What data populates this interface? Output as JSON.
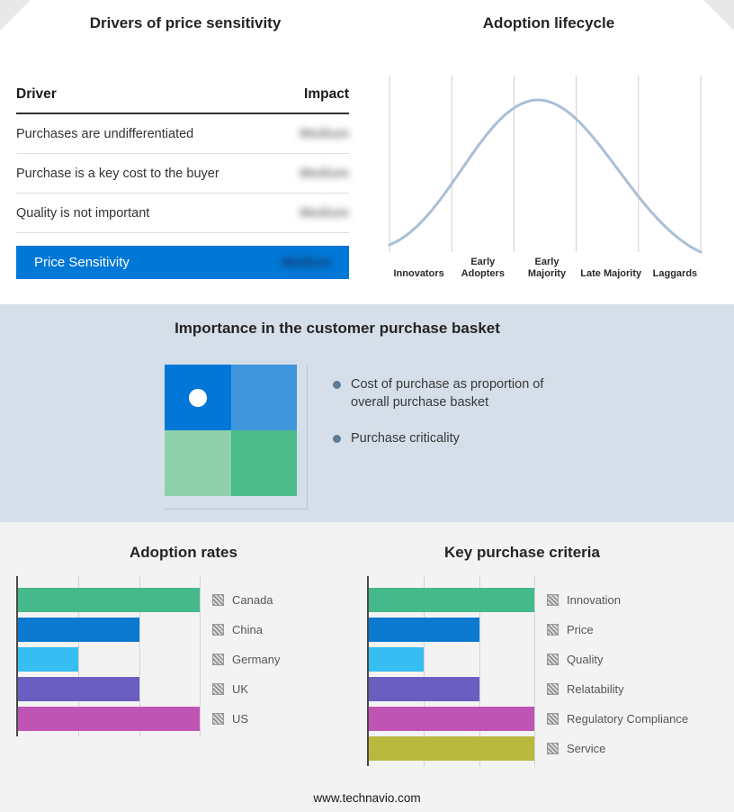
{
  "page": {
    "footer_url": "www.technavio.com"
  },
  "colors": {
    "highlight_row_bg": "#0078d7",
    "curve_stroke": "#a9bfd6",
    "section_mid_bg": "#d5dfe9",
    "matrix_top_left": "#0277d8",
    "matrix_top_right": "#3f96dd",
    "matrix_bottom_left": "#8fd1ad",
    "matrix_bottom_right": "#4cbb8a"
  },
  "drivers_panel": {
    "title": "Drivers of price sensitivity",
    "columns": {
      "driver": "Driver",
      "impact": "Impact"
    },
    "rows": [
      {
        "driver": "Purchases are undifferentiated",
        "impact": "Medium",
        "impact_blurred": true
      },
      {
        "driver": "Purchase is a key cost to the buyer",
        "impact": "Medium",
        "impact_blurred": true
      },
      {
        "driver": "Quality is not important",
        "impact": "Medium",
        "impact_blurred": true
      }
    ],
    "highlight": {
      "driver": "Price Sensitivity",
      "impact": "Medium",
      "impact_blurred": true
    }
  },
  "lifecycle_panel": {
    "title": "Adoption lifecycle"
  },
  "basket_panel": {
    "title": "Importance in the customer purchase basket",
    "bullets": [
      "Cost of purchase as proportion of overall purchase basket",
      "Purchase criticality"
    ]
  },
  "chart_data": [
    {
      "type": "line",
      "title": "Adoption lifecycle",
      "x_categories": [
        "Innovators",
        "Early Adopters",
        "Early Majority",
        "Late Majority",
        "Laggards"
      ],
      "curve": "bell curve peaking over Early Majority",
      "grid": "6 vertical stage-divider lines",
      "y_axis": "adoption (unlabeled)"
    },
    {
      "type": "bar",
      "title": "Adoption rates",
      "orientation": "horizontal",
      "categories": [
        "Canada",
        "China",
        "Germany",
        "UK",
        "US"
      ],
      "values": [
        3,
        2,
        1,
        2,
        3
      ],
      "xlim": [
        0,
        3
      ],
      "bar_colors": [
        "#45b88c",
        "#0b79d0",
        "#36bdf2",
        "#6a5fc1",
        "#c054b4"
      ],
      "legend_position": "right",
      "legend_marker": "gray diagonal-hatch square",
      "x_ticks_labeled": false
    },
    {
      "type": "bar",
      "title": "Key purchase criteria",
      "orientation": "horizontal",
      "categories": [
        "Innovation",
        "Price",
        "Quality",
        "Relatability",
        "Regulatory Compliance",
        "Service"
      ],
      "values": [
        3,
        2,
        1,
        2,
        3,
        3
      ],
      "xlim": [
        0,
        3
      ],
      "bar_colors": [
        "#45b88c",
        "#0b79d0",
        "#36bdf2",
        "#6a5fc1",
        "#c054b4",
        "#b9b83f"
      ],
      "legend_position": "right",
      "legend_marker": "gray diagonal-hatch square",
      "x_ticks_labeled": false
    }
  ]
}
